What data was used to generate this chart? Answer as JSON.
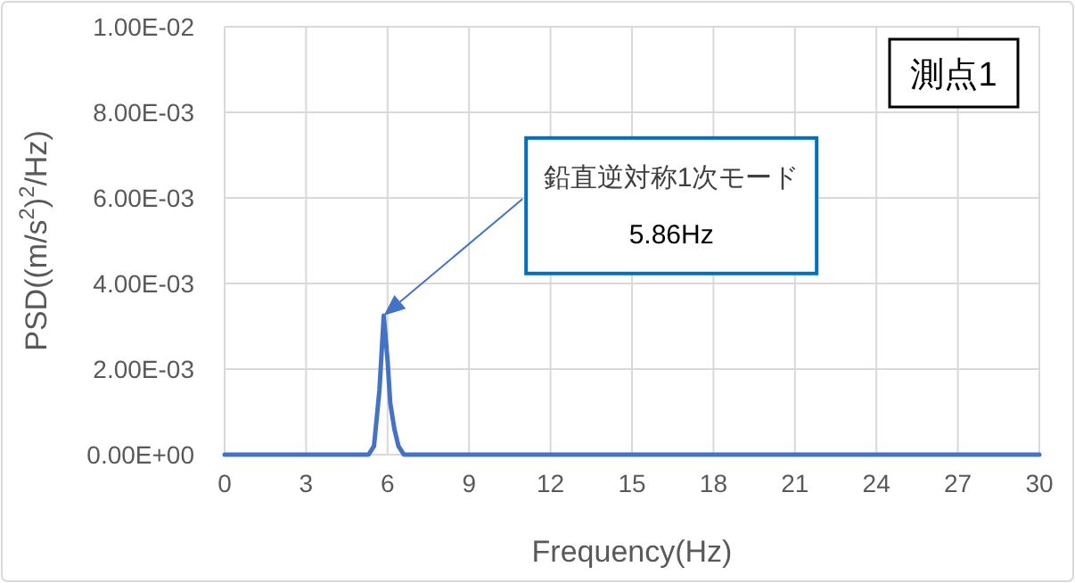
{
  "chart_data": {
    "type": "line",
    "xlabel": "Frequency(Hz)",
    "ylabel": "PSD((m/s$^{2}$)$^{2}$/Hz)",
    "x": [
      0,
      5.3,
      5.5,
      5.7,
      5.86,
      6.0,
      6.1,
      6.25,
      6.4,
      6.6,
      30
    ],
    "series": [
      {
        "color": "#4472c4",
        "values": [
          0,
          0,
          0.0002,
          0.0015,
          0.00325,
          0.0022,
          0.0012,
          0.0006,
          0.0002,
          0,
          0
        ]
      }
    ],
    "xlim": [
      0,
      30
    ],
    "xticks": [
      0,
      3,
      6,
      9,
      12,
      15,
      18,
      21,
      24,
      27,
      30
    ],
    "ylim": [
      0,
      0.01
    ],
    "yticks": [
      {
        "value": 0,
        "label": "0.00E+00"
      },
      {
        "value": 0.002,
        "label": "2.00E-03"
      },
      {
        "value": 0.004,
        "label": "4.00E-03"
      },
      {
        "value": 0.006,
        "label": "6.00E-03"
      },
      {
        "value": 0.008,
        "label": "8.00E-03"
      },
      {
        "value": 0.01,
        "label": "1.00E-02"
      }
    ],
    "grid": true,
    "marker": "none",
    "line_style": "solid",
    "annotations": [
      "鉛直逆対称1次モード\n5.86Hz",
      "測点1"
    ]
  }
}
